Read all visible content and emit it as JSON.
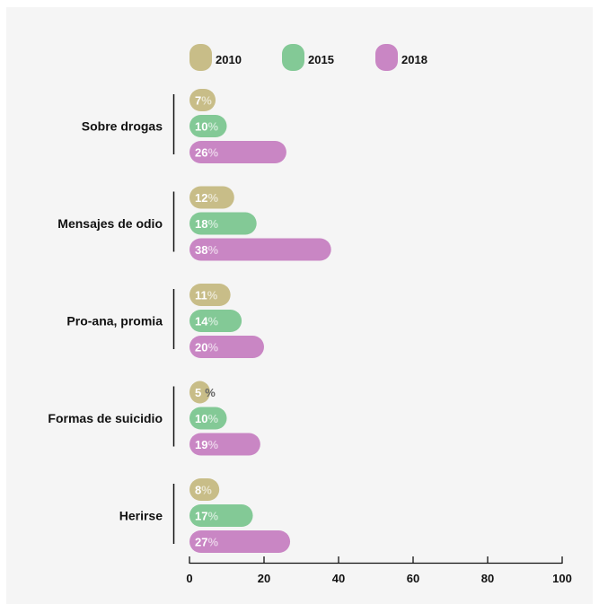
{
  "chart_data": {
    "type": "bar",
    "orientation": "horizontal",
    "bar_style": "rounded-pill",
    "categories": [
      "Sobre drogas",
      "Mensajes de odio",
      "Pro-ana, promia",
      "Formas de suicidio",
      "Herirse"
    ],
    "series": [
      {
        "name": "2010",
        "color": "#c8bd88",
        "values": [
          7,
          12,
          11,
          5,
          8
        ]
      },
      {
        "name": "2015",
        "color": "#83c996",
        "values": [
          10,
          18,
          14,
          10,
          17
        ]
      },
      {
        "name": "2018",
        "color": "#c986c4",
        "values": [
          26,
          38,
          20,
          19,
          27
        ]
      }
    ],
    "value_suffix": "%",
    "xlim": [
      0,
      100
    ],
    "xticks": [
      0,
      20,
      40,
      60,
      80,
      100
    ],
    "legend_position": "top",
    "grid": false
  }
}
